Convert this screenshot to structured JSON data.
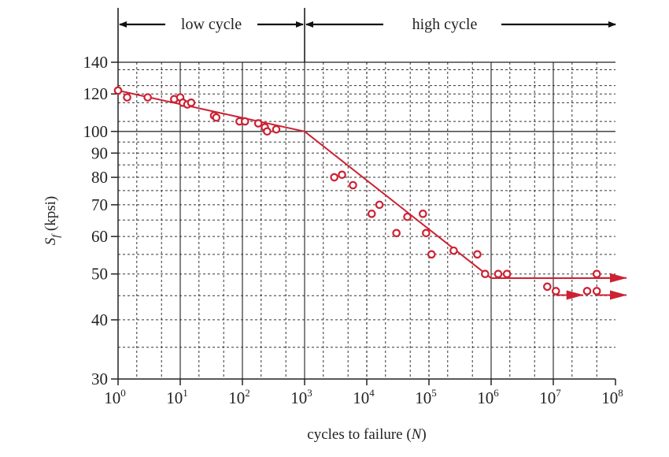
{
  "chart_data": {
    "type": "scatter",
    "x_scale": "log",
    "y_scale": "log",
    "xlim": [
      1,
      100000000
    ],
    "ylim": [
      30,
      140
    ],
    "grid": true,
    "xlabel": {
      "pre": "cycles to failure (",
      "var": "N",
      "post": ")"
    },
    "ylabel": {
      "var": "S",
      "sub": "f",
      "post": " (kpsi)"
    },
    "x_ticks": [
      {
        "base": "10",
        "exp": "0",
        "value": 1
      },
      {
        "base": "10",
        "exp": "1",
        "value": 10
      },
      {
        "base": "10",
        "exp": "2",
        "value": 100
      },
      {
        "base": "10",
        "exp": "3",
        "value": 1000
      },
      {
        "base": "10",
        "exp": "4",
        "value": 10000
      },
      {
        "base": "10",
        "exp": "5",
        "value": 100000
      },
      {
        "base": "10",
        "exp": "6",
        "value": 1000000
      },
      {
        "base": "10",
        "exp": "7",
        "value": 10000000
      },
      {
        "base": "10",
        "exp": "8",
        "value": 100000000
      }
    ],
    "y_ticks": [
      "30",
      "40",
      "50",
      "60",
      "70",
      "80",
      "90",
      "100",
      "120",
      "140"
    ],
    "regions": [
      {
        "label": "low cycle",
        "x_start": 1,
        "x_end": 1000
      },
      {
        "label": "high cycle",
        "x_start": 1000,
        "x_end": 100000000
      }
    ],
    "fit_line": {
      "x": [
        1,
        1000,
        1000000,
        100000000
      ],
      "y": [
        122,
        100,
        49,
        49
      ]
    },
    "points": [
      {
        "x": 1,
        "y": 122
      },
      {
        "x": 1.4,
        "y": 118
      },
      {
        "x": 3,
        "y": 118
      },
      {
        "x": 8,
        "y": 117
      },
      {
        "x": 10,
        "y": 118
      },
      {
        "x": 11,
        "y": 115
      },
      {
        "x": 13,
        "y": 114
      },
      {
        "x": 15,
        "y": 115
      },
      {
        "x": 35,
        "y": 108
      },
      {
        "x": 38,
        "y": 107
      },
      {
        "x": 90,
        "y": 105
      },
      {
        "x": 110,
        "y": 105
      },
      {
        "x": 180,
        "y": 104
      },
      {
        "x": 230,
        "y": 102
      },
      {
        "x": 250,
        "y": 100
      },
      {
        "x": 350,
        "y": 101
      },
      {
        "x": 3000,
        "y": 80
      },
      {
        "x": 4000,
        "y": 81
      },
      {
        "x": 6000,
        "y": 77
      },
      {
        "x": 12000,
        "y": 67
      },
      {
        "x": 16000,
        "y": 70
      },
      {
        "x": 30000,
        "y": 61
      },
      {
        "x": 45000,
        "y": 66
      },
      {
        "x": 80000,
        "y": 67
      },
      {
        "x": 90000,
        "y": 61
      },
      {
        "x": 110000,
        "y": 55
      },
      {
        "x": 250000,
        "y": 56
      },
      {
        "x": 600000,
        "y": 55
      },
      {
        "x": 800000,
        "y": 50
      },
      {
        "x": 1300000,
        "y": 50
      },
      {
        "x": 1800000,
        "y": 50
      },
      {
        "x": 8000000,
        "y": 47
      },
      {
        "x": 11000000,
        "y": 46
      },
      {
        "x": 35000000,
        "y": 46
      },
      {
        "x": 50000000,
        "y": 50
      },
      {
        "x": 50000000,
        "y": 46
      }
    ],
    "runouts": [
      {
        "x": 11000000,
        "y": 46,
        "x_end": 30000000
      },
      {
        "x": 50000000,
        "y": 50,
        "x_end": 150000000
      },
      {
        "x": 50000000,
        "y": 46,
        "x_end": 150000000
      }
    ],
    "colors": {
      "data": "#cc2233",
      "axis": "#222222",
      "grid": "#333333"
    }
  }
}
